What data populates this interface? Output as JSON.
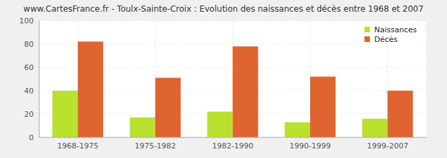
{
  "chart_data": {
    "type": "bar",
    "title": "www.CartesFrance.fr - Toulx-Sainte-Croix : Evolution des naissances et décès entre 1968 et 2007",
    "categories": [
      "1968-1975",
      "1975-1982",
      "1982-1990",
      "1990-1999",
      "1999-2007"
    ],
    "series": [
      {
        "name": "Naissances",
        "color": "#bbe12f",
        "values": [
          40,
          17,
          22,
          13,
          16
        ]
      },
      {
        "name": "Décès",
        "color": "#e0642f",
        "values": [
          82,
          51,
          78,
          52,
          40
        ]
      }
    ],
    "ylim": [
      0,
      100
    ],
    "yticks": [
      0,
      20,
      40,
      60,
      80,
      100
    ],
    "grid": true,
    "legend": "upper right"
  }
}
